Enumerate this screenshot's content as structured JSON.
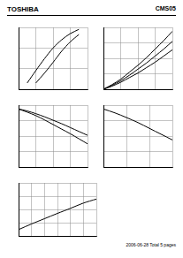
{
  "header": {
    "left": "TOSHIBA",
    "right": "CMS05"
  },
  "footer": "2006-06-28 Total 5 pages",
  "chart_data": [
    {
      "type": "line",
      "log": "y",
      "grid": true,
      "tick_labels": false,
      "color": "#000000",
      "x": [
        0.1,
        0.2,
        0.3,
        0.4,
        0.5,
        0.6,
        0.7
      ],
      "series": [
        {
          "values": [
            0.2,
            0.8,
            3,
            10,
            25,
            50,
            80
          ]
        },
        {
          "values": [
            null,
            0.2,
            0.6,
            2,
            7,
            20,
            45
          ]
        }
      ],
      "xlim": [
        0,
        0.8
      ],
      "xticks": [
        0,
        0.2,
        0.4,
        0.6,
        0.8
      ],
      "ylim": [
        0.1,
        100
      ],
      "yticks": [
        0.1,
        1,
        10,
        100
      ]
    },
    {
      "type": "line",
      "grid": true,
      "tick_labels": false,
      "color": "#000000",
      "x": [
        0,
        1,
        2,
        3,
        4,
        5,
        6,
        7,
        8
      ],
      "series": [
        {
          "values": [
            0,
            0.4,
            0.9,
            1.5,
            2.1,
            2.8,
            3.5,
            4.3,
            5.1
          ]
        },
        {
          "values": [
            0,
            0.5,
            1.1,
            1.8,
            2.6,
            3.4,
            4.3,
            5.2,
            6.2
          ]
        },
        {
          "values": [
            0,
            0.6,
            1.3,
            2.2,
            3.1,
            4.1,
            5.2,
            6.3,
            7.5
          ]
        }
      ],
      "xlim": [
        0,
        8
      ],
      "xticks": [
        0,
        2,
        4,
        6,
        8
      ],
      "ylim": [
        0,
        8
      ],
      "yticks": [
        0,
        2,
        4,
        6,
        8
      ]
    },
    {
      "type": "line",
      "grid": true,
      "tick_labels": false,
      "color": "#000000",
      "x": [
        0,
        1,
        2,
        3,
        4,
        5,
        6,
        7,
        8
      ],
      "series": [
        {
          "values": [
            150,
            145,
            138,
            130,
            121,
            112,
            102,
            92,
            82
          ]
        },
        {
          "values": [
            150,
            142,
            133,
            122,
            110,
            98,
            86,
            73,
            60
          ]
        }
      ],
      "xlim": [
        0,
        8
      ],
      "xticks": [
        0,
        2,
        4,
        6,
        8
      ],
      "ylim": [
        0,
        160
      ],
      "yticks": [
        0,
        40,
        80,
        120,
        160
      ]
    },
    {
      "type": "line",
      "grid": true,
      "tick_labels": false,
      "color": "#000000",
      "x": [
        0,
        0.5,
        1,
        1.5,
        2,
        2.5,
        3
      ],
      "series": [
        {
          "values": [
            150,
            140,
            128,
            115,
            100,
            85,
            70
          ]
        }
      ],
      "xlim": [
        0,
        3
      ],
      "xticks": [
        0,
        1,
        2,
        3
      ],
      "ylim": [
        0,
        160
      ],
      "yticks": [
        0,
        40,
        80,
        120,
        160
      ]
    },
    {
      "type": "line",
      "log": true,
      "grid": true,
      "tick_labels": false,
      "color": "#000000",
      "x": [
        0.001,
        0.01,
        0.1,
        1,
        10,
        100,
        1000
      ],
      "series": [
        {
          "values": [
            0.3,
            0.8,
            2,
            5,
            12,
            30,
            60
          ]
        }
      ],
      "xlim": [
        0.001,
        1000
      ],
      "xticks": [
        0.001,
        0.01,
        0.1,
        1,
        10,
        100,
        1000
      ],
      "ylim": [
        0.1,
        1000
      ],
      "yticks": [
        0.1,
        1,
        10,
        100,
        1000
      ]
    }
  ]
}
